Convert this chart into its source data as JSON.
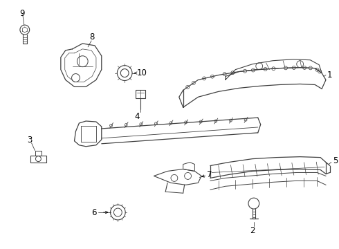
{
  "bg_color": "#ffffff",
  "line_color": "#404040",
  "text_color": "#000000",
  "label_fontsize": 8.5,
  "fig_width": 4.9,
  "fig_height": 3.6,
  "dpi": 100
}
